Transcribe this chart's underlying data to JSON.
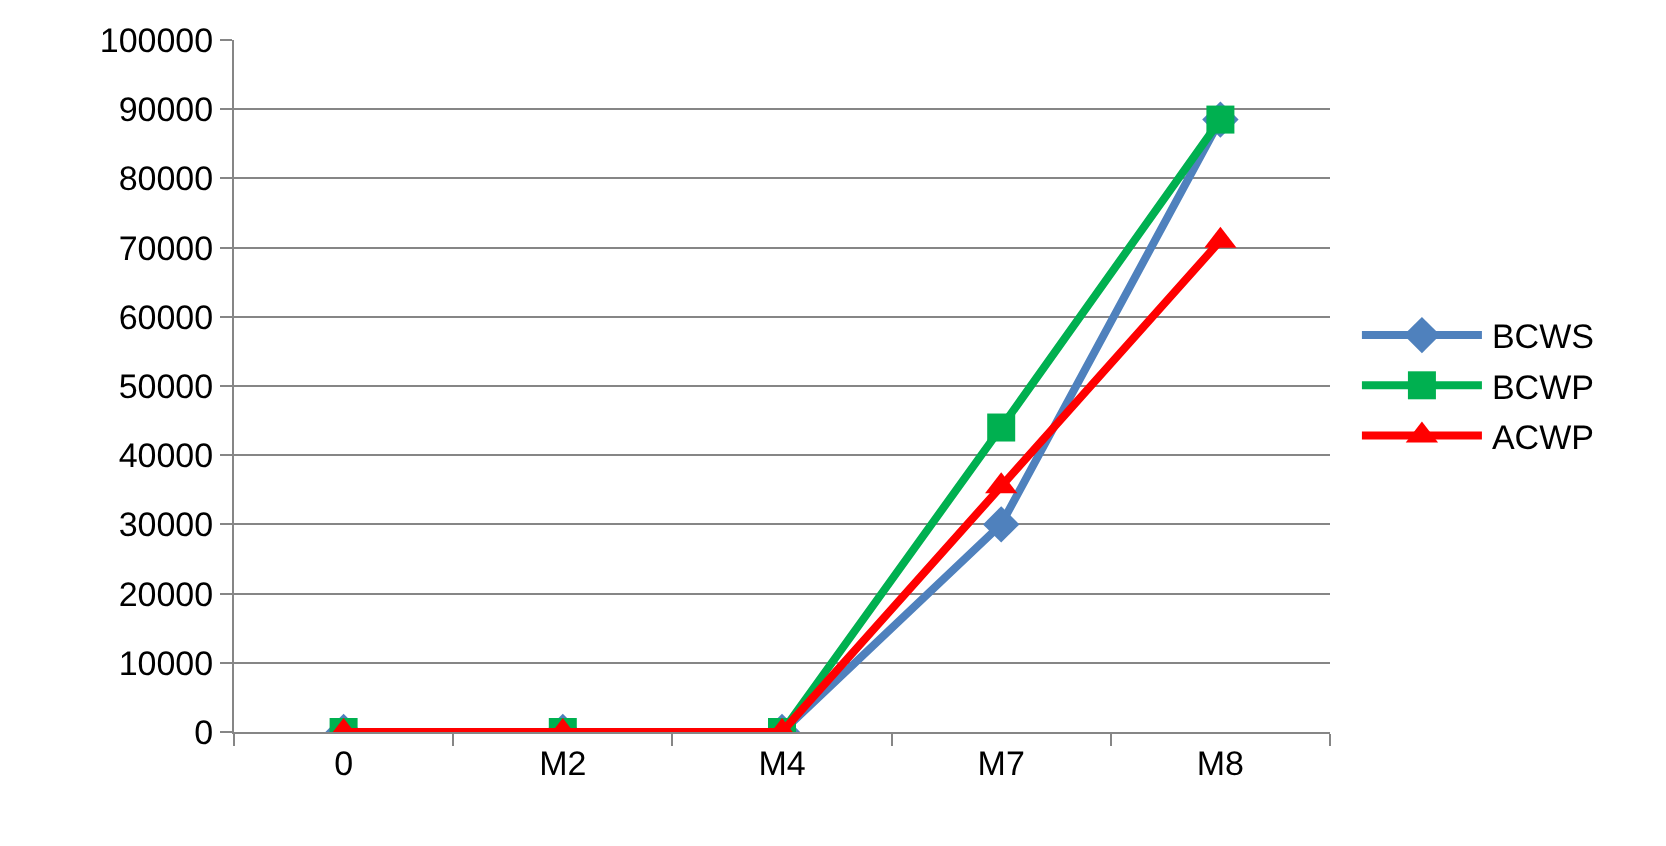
{
  "chart_data": {
    "type": "line",
    "categories": [
      "0",
      "M2",
      "M4",
      "M7",
      "M8"
    ],
    "series": [
      {
        "name": "BCWS",
        "color": "#4f81bd",
        "marker": "diamond",
        "values": [
          0,
          0,
          0,
          30000,
          88500
        ]
      },
      {
        "name": "BCWP",
        "color": "#00b050",
        "marker": "square",
        "values": [
          0,
          0,
          0,
          44000,
          88500
        ]
      },
      {
        "name": "ACWP",
        "color": "#ff0000",
        "marker": "triangle",
        "values": [
          0,
          0,
          0,
          35500,
          71000
        ]
      }
    ],
    "ylim": [
      0,
      100000
    ],
    "yticks": [
      0,
      10000,
      20000,
      30000,
      40000,
      50000,
      60000,
      70000,
      80000,
      90000,
      100000
    ],
    "grid": "y",
    "legend": "right",
    "line_style": "solid"
  }
}
